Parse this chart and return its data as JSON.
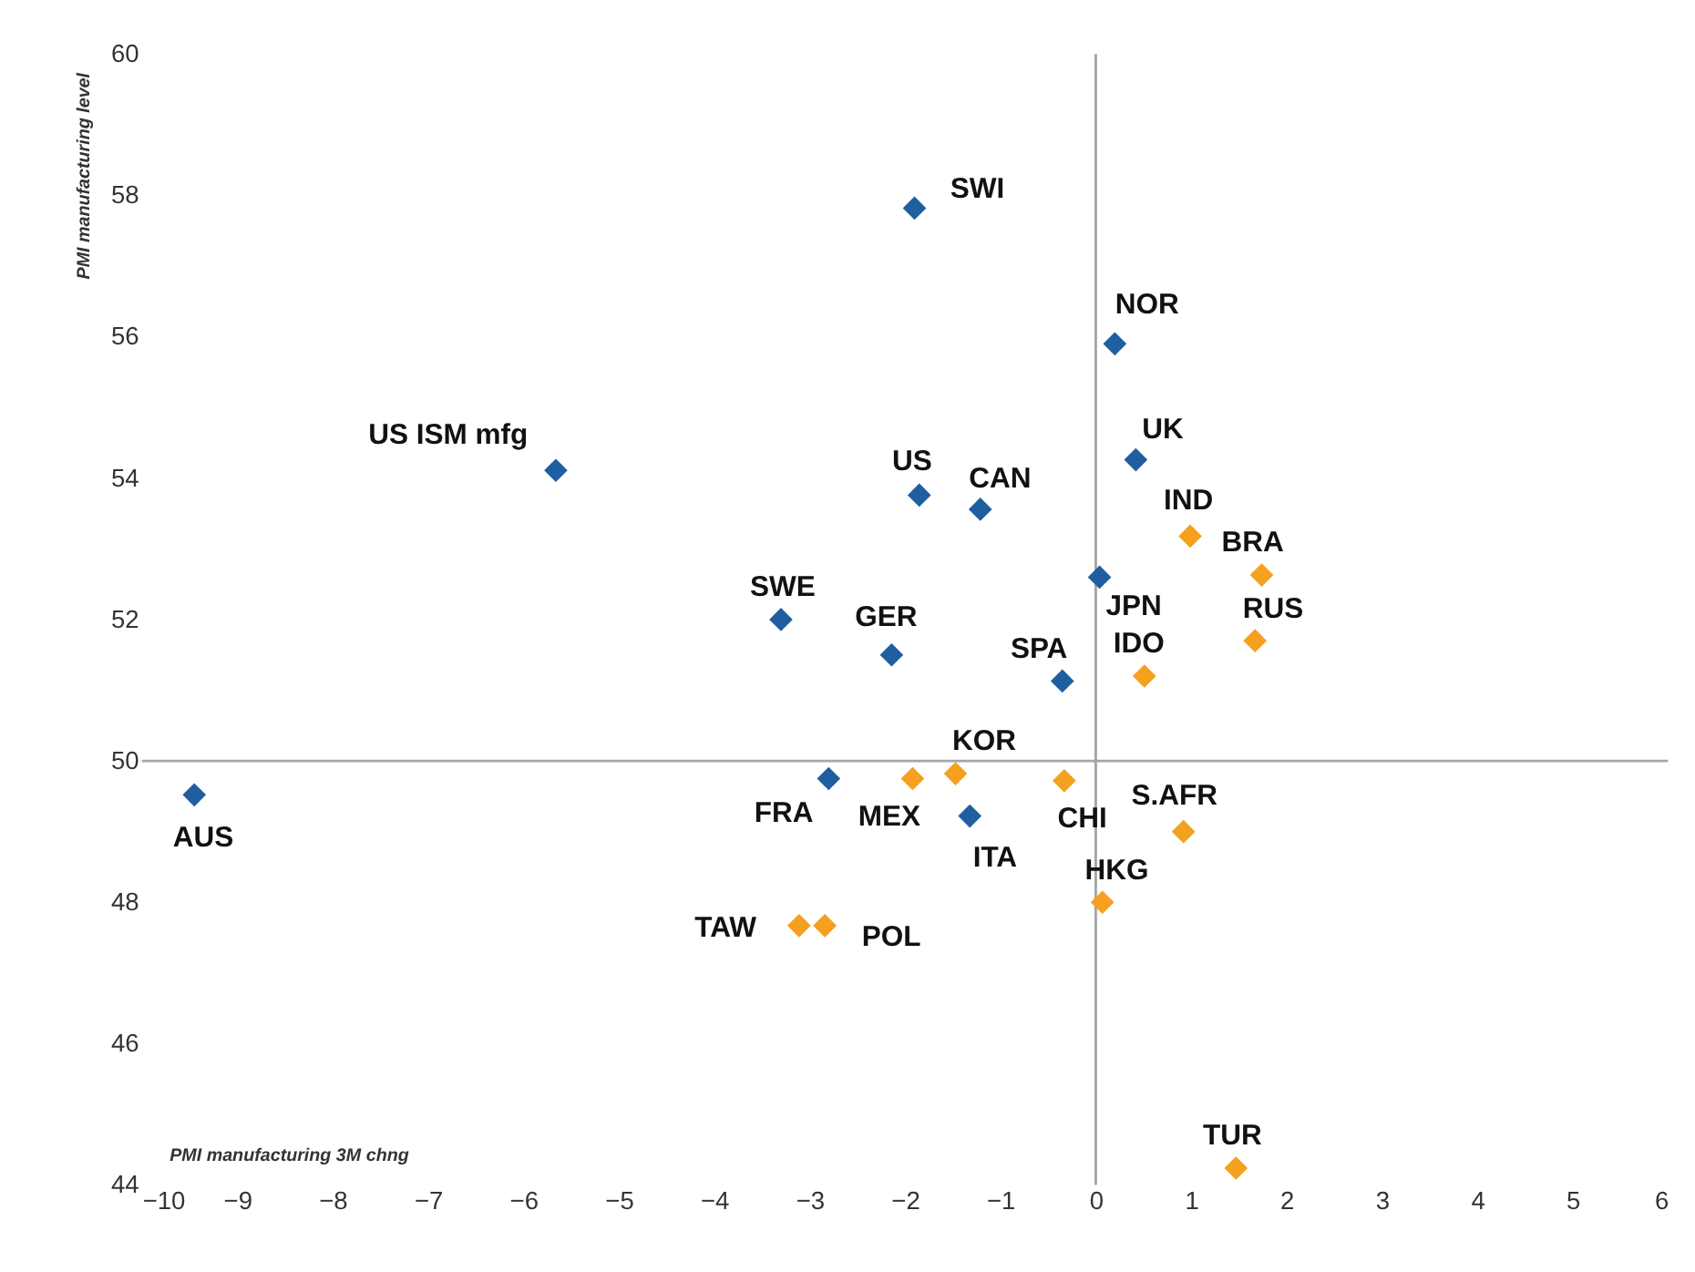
{
  "chart_data": {
    "type": "scatter",
    "xlabel": "PMI manufacturing 3M chng",
    "ylabel": "PMI manufacturing level",
    "xlim": [
      -10,
      6
    ],
    "xticks": [
      -10,
      -9,
      -8,
      -7,
      -6,
      -5,
      -4,
      -3,
      -2,
      -1,
      0,
      1,
      2,
      3,
      4,
      5,
      6
    ],
    "ylim": [
      44,
      60
    ],
    "yticks": [
      44,
      46,
      48,
      50,
      52,
      54,
      56,
      58,
      60
    ],
    "marker": "diamond",
    "ref_lines": [
      {
        "axis": "x",
        "value": 0,
        "color": "#a6a6a6"
      },
      {
        "axis": "y",
        "value": 50,
        "color": "#a6a6a6"
      }
    ],
    "series": [
      {
        "color": "#1f5fa0",
        "x": [
          -1.9,
          0.2,
          0.42,
          -5.66,
          -1.85,
          -1.21,
          0.04,
          -3.3,
          -2.14,
          -0.35,
          -2.8,
          -1.32,
          -9.45
        ],
        "values": [
          57.82,
          55.9,
          54.26,
          54.11,
          53.76,
          53.56,
          52.6,
          52.0,
          51.5,
          51.13,
          49.75,
          49.22,
          49.52
        ]
      },
      {
        "color": "#f5a01e",
        "x": [
          0.99,
          1.74,
          1.67,
          0.51,
          -1.47,
          -1.92,
          -0.33,
          0.92,
          0.07,
          -3.11,
          -2.84,
          1.47
        ],
        "values": [
          53.18,
          52.63,
          51.7,
          51.2,
          49.82,
          49.75,
          49.72,
          49.0,
          48.0,
          47.67,
          47.67,
          44.24
        ]
      }
    ],
    "annotations": [
      {
        "text": "SWI",
        "x": -1.9,
        "y": 57.82
      },
      {
        "text": "NOR",
        "x": 0.2,
        "y": 55.9
      },
      {
        "text": "UK",
        "x": 0.42,
        "y": 54.26
      },
      {
        "text": "US ISM mfg",
        "x": -5.66,
        "y": 54.11
      },
      {
        "text": "US",
        "x": -1.85,
        "y": 53.76
      },
      {
        "text": "CAN",
        "x": -1.21,
        "y": 53.56
      },
      {
        "text": "JPN",
        "x": 0.04,
        "y": 52.6
      },
      {
        "text": "SWE",
        "x": -3.3,
        "y": 52.0
      },
      {
        "text": "GER",
        "x": -2.14,
        "y": 51.5
      },
      {
        "text": "SPA",
        "x": -0.35,
        "y": 51.13
      },
      {
        "text": "FRA",
        "x": -2.8,
        "y": 49.75
      },
      {
        "text": "ITA",
        "x": -1.32,
        "y": 49.22
      },
      {
        "text": "AUS",
        "x": -9.45,
        "y": 49.52
      },
      {
        "text": "IND",
        "x": 0.99,
        "y": 53.18
      },
      {
        "text": "BRA",
        "x": 1.74,
        "y": 52.63
      },
      {
        "text": "RUS",
        "x": 1.67,
        "y": 51.7
      },
      {
        "text": "IDO",
        "x": 0.51,
        "y": 51.2
      },
      {
        "text": "KOR",
        "x": -1.47,
        "y": 49.82
      },
      {
        "text": "MEX",
        "x": -1.92,
        "y": 49.75
      },
      {
        "text": "CHI",
        "x": -0.33,
        "y": 49.72
      },
      {
        "text": "S.AFR",
        "x": 0.92,
        "y": 49.0
      },
      {
        "text": "HKG",
        "x": 0.07,
        "y": 48.0
      },
      {
        "text": "TAW",
        "x": -3.11,
        "y": 47.67
      },
      {
        "text": "POL",
        "x": -2.84,
        "y": 47.67
      },
      {
        "text": "TUR",
        "x": 1.47,
        "y": 44.24
      }
    ]
  }
}
